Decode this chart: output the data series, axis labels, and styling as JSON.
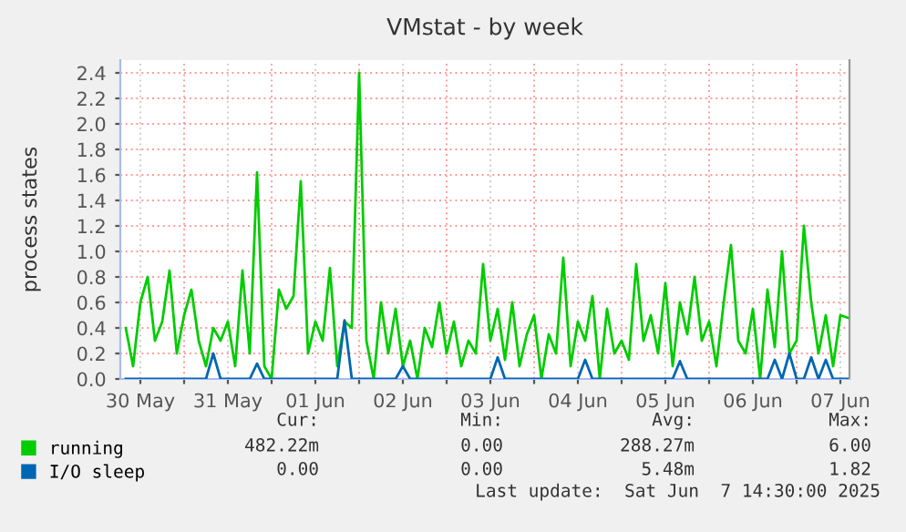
{
  "chart_data": {
    "type": "line",
    "title": "VMstat - by week",
    "ylabel": "process states",
    "x": [
      "2025-05-30T08:00",
      "2025-05-30T10:00",
      "2025-05-30T12:00",
      "2025-05-30T14:00",
      "2025-05-30T16:00",
      "2025-05-30T18:00",
      "2025-05-30T20:00",
      "2025-05-30T22:00",
      "2025-05-31T00:00",
      "2025-05-31T02:00",
      "2025-05-31T04:00",
      "2025-05-31T06:00",
      "2025-05-31T08:00",
      "2025-05-31T10:00",
      "2025-05-31T12:00",
      "2025-05-31T14:00",
      "2025-05-31T16:00",
      "2025-05-31T18:00",
      "2025-05-31T20:00",
      "2025-05-31T22:00",
      "2025-06-01T00:00",
      "2025-06-01T02:00",
      "2025-06-01T04:00",
      "2025-06-01T06:00",
      "2025-06-01T08:00",
      "2025-06-01T10:00",
      "2025-06-01T12:00",
      "2025-06-01T14:00",
      "2025-06-01T16:00",
      "2025-06-01T18:00",
      "2025-06-01T20:00",
      "2025-06-01T22:00",
      "2025-06-02T00:00",
      "2025-06-02T02:00",
      "2025-06-02T04:00",
      "2025-06-02T06:00",
      "2025-06-02T08:00",
      "2025-06-02T10:00",
      "2025-06-02T12:00",
      "2025-06-02T14:00",
      "2025-06-02T16:00",
      "2025-06-02T18:00",
      "2025-06-02T20:00",
      "2025-06-02T22:00",
      "2025-06-03T00:00",
      "2025-06-03T02:00",
      "2025-06-03T04:00",
      "2025-06-03T06:00",
      "2025-06-03T08:00",
      "2025-06-03T10:00",
      "2025-06-03T12:00",
      "2025-06-03T14:00",
      "2025-06-03T16:00",
      "2025-06-03T18:00",
      "2025-06-03T20:00",
      "2025-06-03T22:00",
      "2025-06-04T00:00",
      "2025-06-04T02:00",
      "2025-06-04T04:00",
      "2025-06-04T06:00",
      "2025-06-04T08:00",
      "2025-06-04T10:00",
      "2025-06-04T12:00",
      "2025-06-04T14:00",
      "2025-06-04T16:00",
      "2025-06-04T18:00",
      "2025-06-04T20:00",
      "2025-06-04T22:00",
      "2025-06-05T00:00",
      "2025-06-05T02:00",
      "2025-06-05T04:00",
      "2025-06-05T06:00",
      "2025-06-05T08:00",
      "2025-06-05T10:00",
      "2025-06-05T12:00",
      "2025-06-05T14:00",
      "2025-06-05T16:00",
      "2025-06-05T18:00",
      "2025-06-05T20:00",
      "2025-06-05T22:00",
      "2025-06-06T00:00",
      "2025-06-06T02:00",
      "2025-06-06T04:00",
      "2025-06-06T06:00",
      "2025-06-06T08:00",
      "2025-06-06T10:00",
      "2025-06-06T12:00",
      "2025-06-06T14:00",
      "2025-06-06T16:00",
      "2025-06-06T18:00",
      "2025-06-06T20:00",
      "2025-06-06T22:00",
      "2025-06-07T00:00",
      "2025-06-07T02:00",
      "2025-06-07T04:00",
      "2025-06-07T06:00",
      "2025-06-07T08:00",
      "2025-06-07T10:00",
      "2025-06-07T12:00",
      "2025-06-07T14:00"
    ],
    "series": [
      {
        "name": "running",
        "color": "#00cc00",
        "values": [
          0.4,
          0.1,
          0.6,
          0.8,
          0.3,
          0.45,
          0.85,
          0.2,
          0.5,
          0.7,
          0.3,
          0.1,
          0.4,
          0.3,
          0.45,
          0.1,
          0.85,
          0.2,
          1.62,
          0.1,
          0.0,
          0.7,
          0.55,
          0.65,
          1.55,
          0.2,
          0.45,
          0.3,
          0.87,
          0.1,
          0.45,
          0.4,
          2.4,
          0.3,
          0.0,
          0.6,
          0.2,
          0.55,
          0.1,
          0.3,
          0.0,
          0.4,
          0.25,
          0.6,
          0.2,
          0.45,
          0.1,
          0.3,
          0.2,
          0.9,
          0.3,
          0.55,
          0.15,
          0.6,
          0.1,
          0.35,
          0.5,
          0.0,
          0.35,
          0.2,
          0.95,
          0.1,
          0.45,
          0.3,
          0.65,
          0.0,
          0.55,
          0.2,
          0.3,
          0.15,
          0.9,
          0.3,
          0.5,
          0.2,
          0.75,
          0.1,
          0.6,
          0.35,
          0.8,
          0.3,
          0.45,
          0.1,
          0.6,
          1.05,
          0.3,
          0.2,
          0.55,
          0.0,
          0.7,
          0.25,
          1.0,
          0.2,
          0.3,
          1.2,
          0.6,
          0.2,
          0.5,
          0.1,
          0.5,
          0.48
        ]
      },
      {
        "name": "I/O sleep",
        "color": "#0066b3",
        "values": [
          0,
          0,
          0,
          0,
          0,
          0,
          0,
          0,
          0,
          0,
          0,
          0,
          0.2,
          0,
          0,
          0,
          0,
          0,
          0.12,
          0,
          0,
          0,
          0,
          0,
          0,
          0,
          0,
          0,
          0,
          0,
          0.46,
          0,
          0,
          0,
          0,
          0,
          0,
          0,
          0.1,
          0,
          0,
          0,
          0,
          0,
          0,
          0,
          0,
          0,
          0,
          0,
          0,
          0.17,
          0,
          0,
          0,
          0,
          0,
          0,
          0,
          0,
          0,
          0,
          0,
          0.15,
          0,
          0,
          0,
          0,
          0,
          0,
          0,
          0,
          0,
          0,
          0,
          0,
          0.14,
          0,
          0,
          0,
          0,
          0,
          0,
          0,
          0,
          0,
          0,
          0,
          0,
          0.15,
          0,
          0.2,
          0,
          0,
          0.17,
          0,
          0.15,
          0,
          0,
          0
        ]
      }
    ],
    "xlim": [
      "2025-05-30T06:30",
      "2025-06-07T14:30"
    ],
    "xticks": [
      {
        "value": "2025-05-30T12:00",
        "label": "30 May"
      },
      {
        "value": "2025-05-31T00:00",
        "label": null
      },
      {
        "value": "2025-05-31T12:00",
        "label": "31 May"
      },
      {
        "value": "2025-06-01T00:00",
        "label": null
      },
      {
        "value": "2025-06-01T12:00",
        "label": "01 Jun"
      },
      {
        "value": "2025-06-02T00:00",
        "label": null
      },
      {
        "value": "2025-06-02T12:00",
        "label": "02 Jun"
      },
      {
        "value": "2025-06-03T00:00",
        "label": null
      },
      {
        "value": "2025-06-03T12:00",
        "label": "03 Jun"
      },
      {
        "value": "2025-06-04T00:00",
        "label": null
      },
      {
        "value": "2025-06-04T12:00",
        "label": "04 Jun"
      },
      {
        "value": "2025-06-05T00:00",
        "label": null
      },
      {
        "value": "2025-06-05T12:00",
        "label": "05 Jun"
      },
      {
        "value": "2025-06-06T00:00",
        "label": null
      },
      {
        "value": "2025-06-06T12:00",
        "label": "06 Jun"
      },
      {
        "value": "2025-06-07T00:00",
        "label": null
      },
      {
        "value": "2025-06-07T12:00",
        "label": "07 Jun"
      }
    ],
    "ylim": [
      0,
      2.5
    ],
    "yticks": [
      {
        "value": 0,
        "label": "0.0"
      },
      0.2,
      0.4,
      0.6,
      0.8,
      {
        "value": 1,
        "label": "1.0"
      },
      1.2,
      1.4,
      1.6,
      1.8,
      {
        "value": 2,
        "label": "2.0"
      },
      2.2,
      2.4
    ],
    "grid": true,
    "legend": "bottom",
    "marker": "none",
    "line_style": "solid",
    "annotations": [
      "Cur:",
      "Min:",
      "Avg:",
      "Max:",
      "482.22m",
      "0.00",
      "288.27m",
      "6.00",
      "0.00",
      "0.00",
      "5.48m",
      "1.82",
      "Last update:  Sat Jun  7 14:30:00 2025"
    ]
  }
}
